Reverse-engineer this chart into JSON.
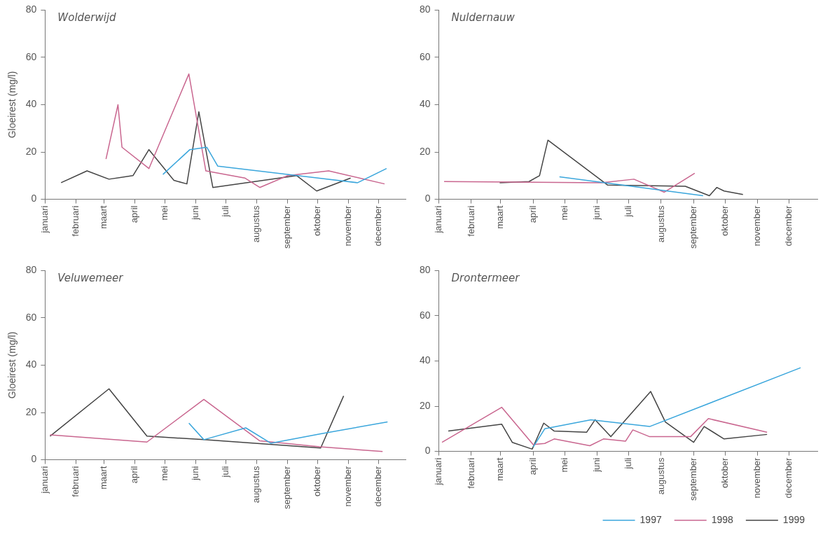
{
  "chart_data": [
    {
      "type": "line",
      "title": "Wolderwijd",
      "ylabel": "Gloeirest (mg/l)",
      "xlim": [
        "--01-01",
        "--12-28"
      ],
      "xticks": [
        {
          "value": "--01-01",
          "label": "januari"
        },
        {
          "value": "--02-01",
          "label": "februari"
        },
        {
          "value": "--03-01",
          "label": "maart"
        },
        {
          "value": "--04-01",
          "label": "april"
        },
        {
          "value": "--05-01",
          "label": "mei"
        },
        {
          "value": "--06-01",
          "label": "juni"
        },
        {
          "value": "--07-01",
          "label": "juli"
        },
        {
          "value": "--08-01",
          "label": "augustus"
        },
        {
          "value": "--09-01",
          "label": "september"
        },
        {
          "value": "--10-01",
          "label": "oktober"
        },
        {
          "value": "--11-01",
          "label": "november"
        },
        {
          "value": "--12-01",
          "label": "december"
        }
      ],
      "ylim": [
        0,
        80
      ],
      "yticks": [
        0,
        20,
        40,
        60,
        80
      ],
      "series": [
        {
          "color": "#3aa6dc",
          "x": [
            "--04-29",
            "--05-26",
            "--06-12",
            "--06-23",
            "--11-10",
            "--12-09"
          ],
          "values": [
            10.5,
            21,
            22,
            14,
            7,
            13
          ]
        },
        {
          "color": "#c9668f",
          "x": [
            "--03-03",
            "--03-15",
            "--03-19",
            "--04-15",
            "--05-25",
            "--06-11",
            "--07-20",
            "--08-04",
            "--09-01",
            "--10-12",
            "--12-07"
          ],
          "values": [
            17,
            40,
            22,
            13,
            53,
            12,
            9,
            5,
            10,
            12,
            6.5
          ]
        },
        {
          "color": "#444444",
          "x": [
            "--01-17",
            "--02-12",
            "--03-06",
            "--03-30",
            "--04-15",
            "--05-10",
            "--05-23",
            "--06-04",
            "--06-18",
            "--09-10",
            "--09-30",
            "--11-03"
          ],
          "values": [
            7,
            12,
            8.5,
            10,
            21,
            8,
            6.5,
            37,
            5,
            10,
            3.5,
            9
          ]
        }
      ]
    },
    {
      "type": "line",
      "title": "Nuldernauw",
      "xlim": [
        "--01-01",
        "--12-28"
      ],
      "xticks": [
        {
          "value": "--01-01",
          "label": "januari"
        },
        {
          "value": "--02-01",
          "label": "februari"
        },
        {
          "value": "--03-01",
          "label": "maart"
        },
        {
          "value": "--04-01",
          "label": "april"
        },
        {
          "value": "--05-01",
          "label": "mei"
        },
        {
          "value": "--06-01",
          "label": "juni"
        },
        {
          "value": "--07-01",
          "label": "juli"
        },
        {
          "value": "--08-01",
          "label": "augustus"
        },
        {
          "value": "--09-01",
          "label": "september"
        },
        {
          "value": "--10-01",
          "label": "oktober"
        },
        {
          "value": "--11-01",
          "label": "november"
        },
        {
          "value": "--12-01",
          "label": "december"
        }
      ],
      "ylim": [
        0,
        80
      ],
      "yticks": [
        0,
        20,
        40,
        60,
        80
      ],
      "series": [
        {
          "color": "#3aa6dc",
          "x": [
            "--04-26",
            "--06-25",
            "--09-10"
          ],
          "values": [
            9.5,
            6,
            1.5
          ]
        },
        {
          "color": "#c9668f",
          "x": [
            "--01-06",
            "--06-05",
            "--07-06",
            "--08-04",
            "--09-02"
          ],
          "values": [
            7.5,
            7,
            8.5,
            3,
            11
          ]
        },
        {
          "color": "#444444",
          "x": [
            "--02-28",
            "--03-28",
            "--04-07",
            "--04-15",
            "--06-11",
            "--08-24",
            "--09-16",
            "--09-23",
            "--09-30",
            "--10-18"
          ],
          "values": [
            7,
            7.5,
            10,
            25,
            6,
            5.5,
            1.5,
            5,
            3.5,
            2
          ]
        }
      ]
    },
    {
      "type": "line",
      "title": "Veluwemeer",
      "ylabel": "Gloeirest (mg/l)",
      "xlim": [
        "--01-01",
        "--12-28"
      ],
      "xticks": [
        {
          "value": "--01-01",
          "label": "januari"
        },
        {
          "value": "--02-01",
          "label": "februari"
        },
        {
          "value": "--03-01",
          "label": "maart"
        },
        {
          "value": "--04-01",
          "label": "april"
        },
        {
          "value": "--05-01",
          "label": "mei"
        },
        {
          "value": "--06-01",
          "label": "juni"
        },
        {
          "value": "--07-01",
          "label": "juli"
        },
        {
          "value": "--08-01",
          "label": "augustus"
        },
        {
          "value": "--09-01",
          "label": "september"
        },
        {
          "value": "--10-01",
          "label": "oktober"
        },
        {
          "value": "--11-01",
          "label": "november"
        },
        {
          "value": "--12-01",
          "label": "december"
        }
      ],
      "ylim": [
        0,
        80
      ],
      "yticks": [
        0,
        20,
        40,
        60,
        80
      ],
      "series": [
        {
          "color": "#3aa6dc",
          "x": [
            "--05-25",
            "--06-09",
            "--07-21",
            "--08-15",
            "--10-04",
            "--12-10"
          ],
          "values": [
            15.5,
            8.5,
            13.5,
            7,
            11,
            16
          ]
        },
        {
          "color": "#c9668f",
          "x": [
            "--01-06",
            "--04-13",
            "--06-09",
            "--08-04",
            "--10-03",
            "--12-05"
          ],
          "values": [
            10.5,
            7.5,
            25.5,
            8,
            5.5,
            3.5
          ]
        },
        {
          "color": "#444444",
          "x": [
            "--01-06",
            "--03-06",
            "--04-13",
            "--06-09",
            "--10-04",
            "--10-27"
          ],
          "values": [
            10,
            30,
            10,
            8.5,
            5,
            27
          ]
        }
      ]
    },
    {
      "type": "line",
      "title": "Drontermeer",
      "legend": "bottom right",
      "xlim": [
        "--01-01",
        "--12-28"
      ],
      "xticks": [
        {
          "value": "--01-01",
          "label": "januari"
        },
        {
          "value": "--02-01",
          "label": "februari"
        },
        {
          "value": "--03-01",
          "label": "maart"
        },
        {
          "value": "--04-01",
          "label": "april"
        },
        {
          "value": "--05-01",
          "label": "mei"
        },
        {
          "value": "--06-01",
          "label": "juni"
        },
        {
          "value": "--07-01",
          "label": "juli"
        },
        {
          "value": "--08-01",
          "label": "augustus"
        },
        {
          "value": "--09-01",
          "label": "september"
        },
        {
          "value": "--10-01",
          "label": "oktober"
        },
        {
          "value": "--11-01",
          "label": "november"
        },
        {
          "value": "--12-01",
          "label": "december"
        }
      ],
      "ylim": [
        0,
        80
      ],
      "yticks": [
        0,
        20,
        40,
        60,
        80
      ],
      "series": [
        {
          "name": "1997",
          "color": "#3aa6dc",
          "x": [
            "--04-01",
            "--04-12",
            "--05-26",
            "--07-21",
            "--12-12"
          ],
          "values": [
            2,
            10,
            14,
            11,
            37
          ]
        },
        {
          "name": "1998",
          "color": "#c9668f",
          "x": [
            "--01-04",
            "--03-02",
            "--04-01",
            "--04-12",
            "--04-21",
            "--05-25",
            "--06-07",
            "--06-28",
            "--07-05",
            "--07-21",
            "--08-29",
            "--09-15",
            "--11-10"
          ],
          "values": [
            4,
            19.5,
            3,
            3.5,
            5.5,
            2.5,
            5.5,
            4.5,
            9.5,
            6.5,
            6.5,
            14.5,
            8.5
          ]
        },
        {
          "name": "1999",
          "color": "#444444",
          "x": [
            "--01-10",
            "--03-02",
            "--03-12",
            "--03-31",
            "--04-11",
            "--04-21",
            "--05-22",
            "--05-30",
            "--06-14",
            "--07-22",
            "--08-05",
            "--09-01",
            "--09-11",
            "--09-30",
            "--11-10"
          ],
          "values": [
            9,
            12,
            4,
            1,
            12.5,
            9,
            8.5,
            14,
            6.5,
            26.5,
            13,
            4,
            11,
            5.5,
            7.5
          ]
        }
      ]
    }
  ]
}
